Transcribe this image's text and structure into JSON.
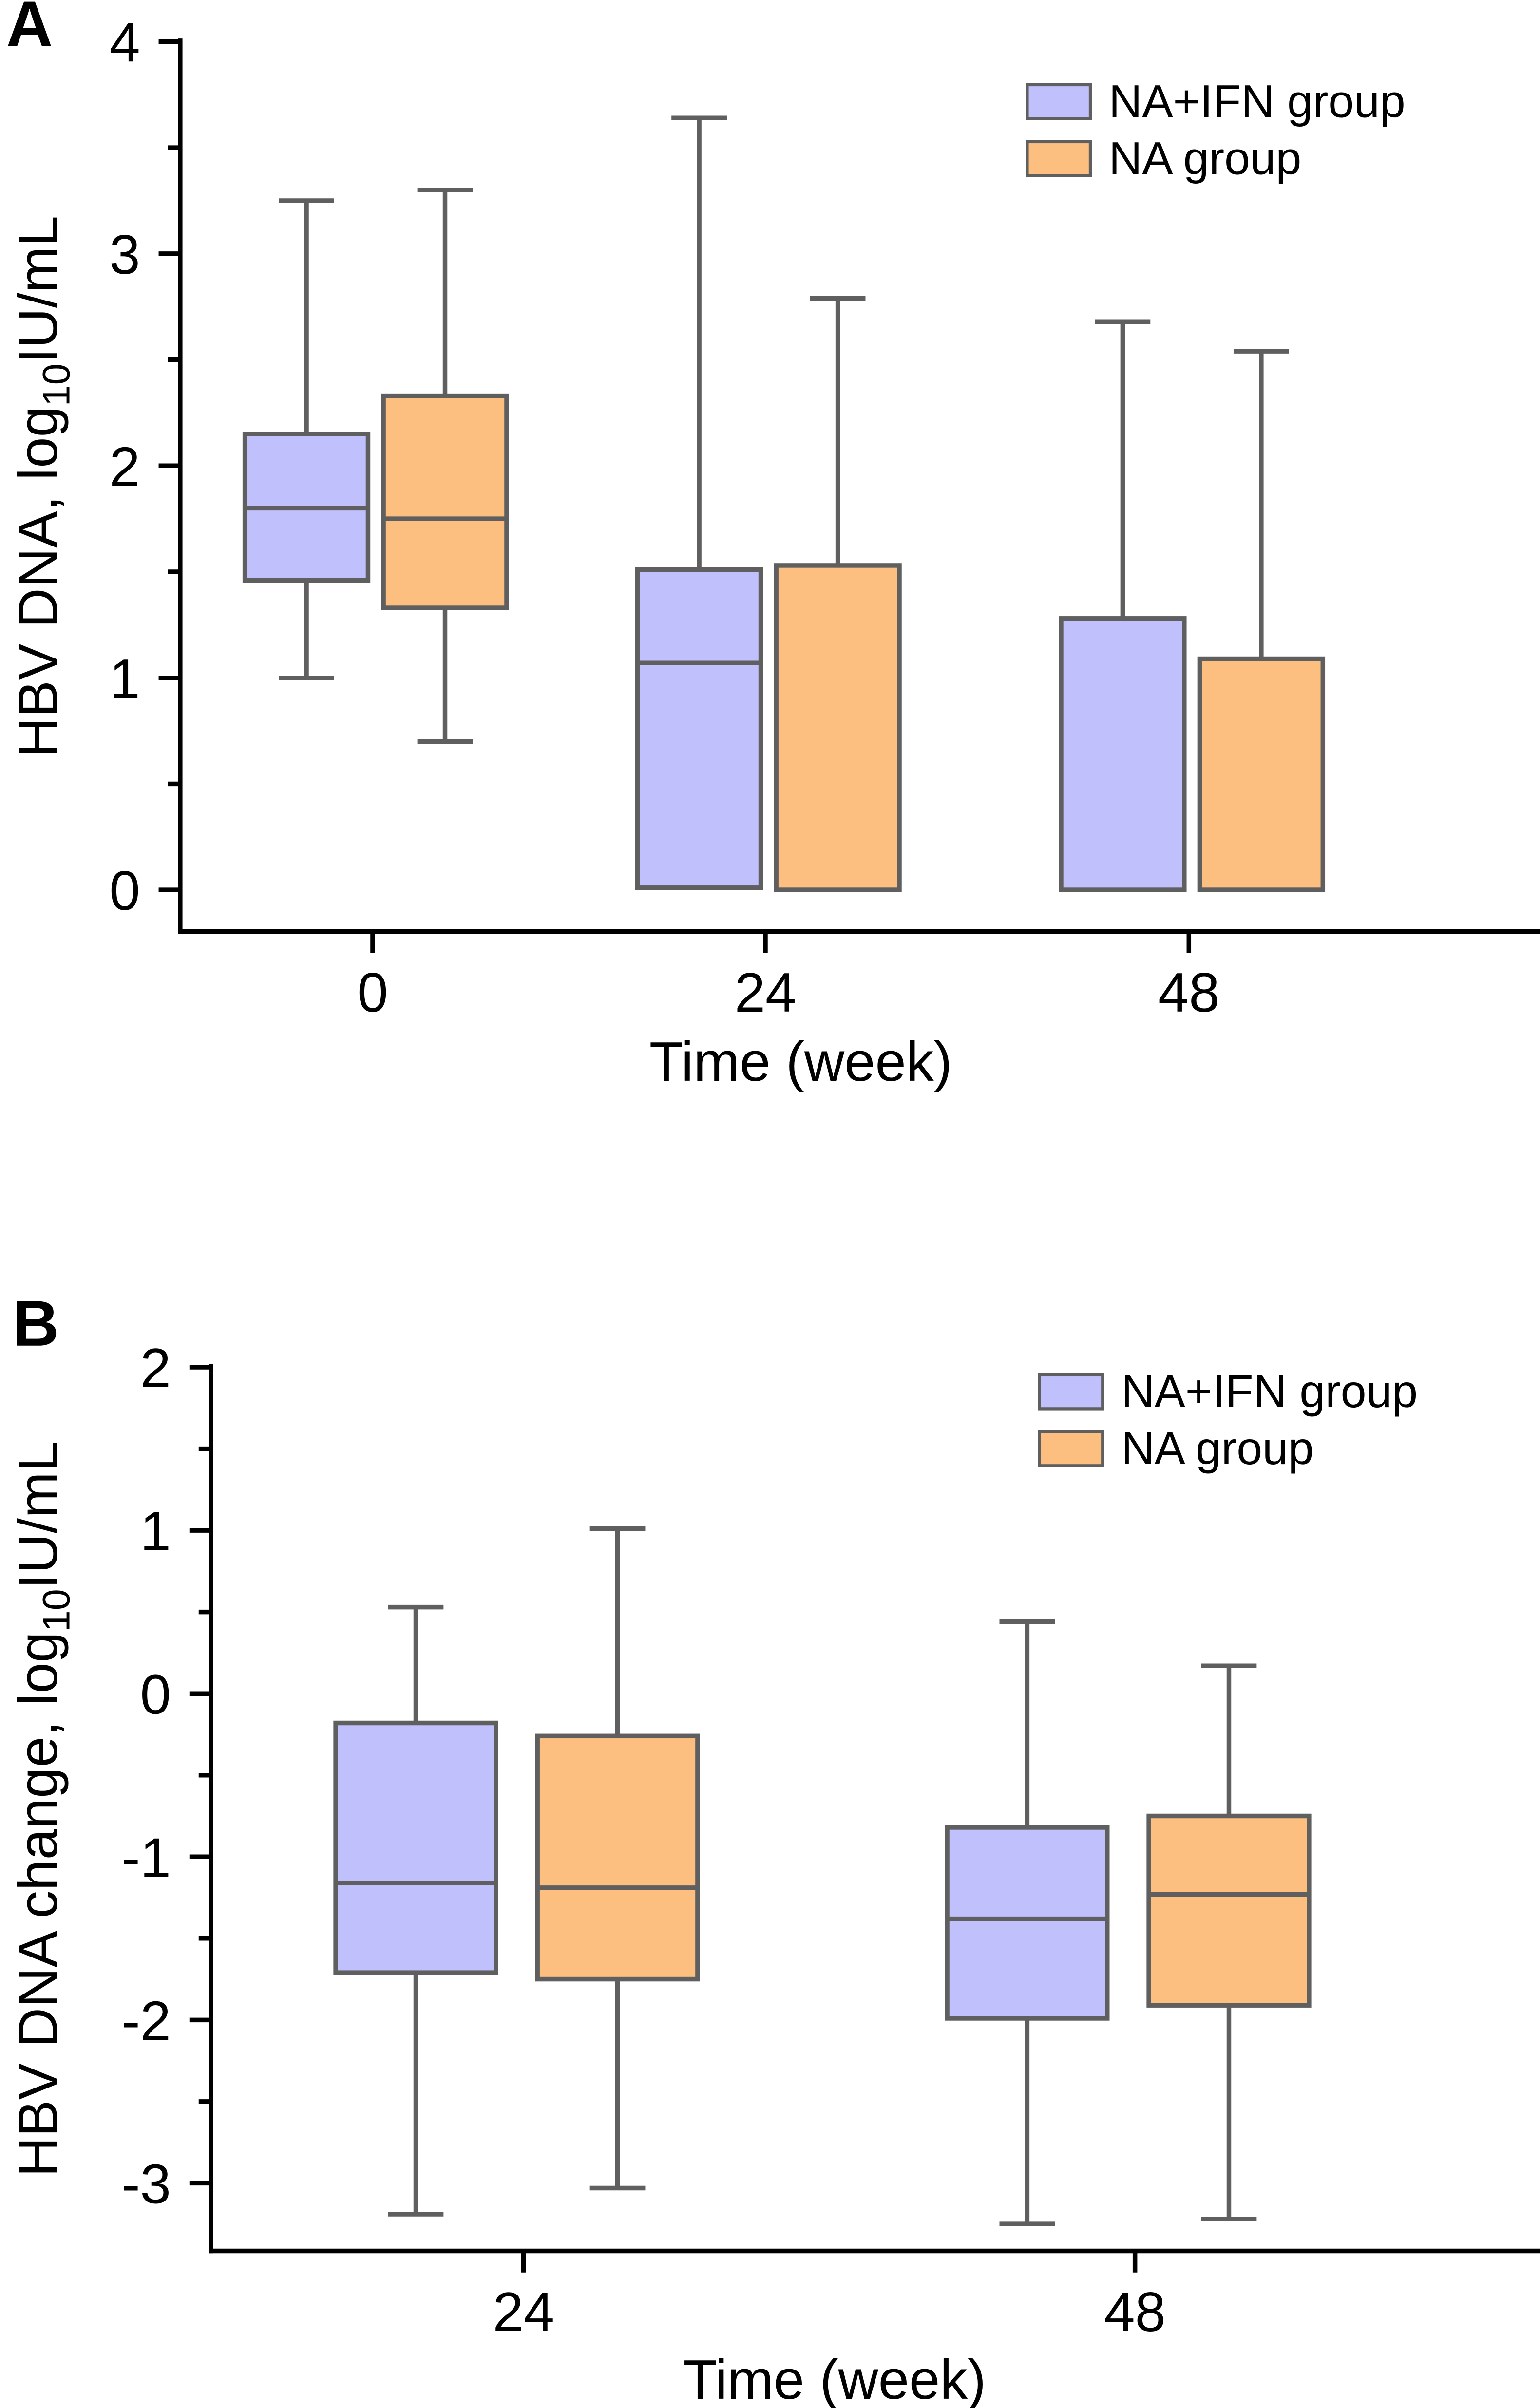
{
  "colors": {
    "naifn": "#c0c0fc",
    "na": "#fdbf80",
    "stroke": "#5f5f5f",
    "axis": "#000000"
  },
  "chart_data": [
    {
      "panel": "A",
      "type": "box",
      "xlabel": "Time (week)",
      "ylabel": {
        "prefix": "HBV DNA, log",
        "sub": "10",
        "suffix": "IU/mL"
      },
      "ylim": [
        -0.2,
        4
      ],
      "yticks": [
        "0",
        "1",
        "2",
        "3",
        "4"
      ],
      "yticks_values": [
        0,
        1,
        2,
        3,
        4
      ],
      "yminor": [
        0.5,
        1.5,
        2.5,
        3.5
      ],
      "categories": [
        "0",
        "24",
        "48"
      ],
      "legend": {
        "placement": "top-right",
        "entries": [
          "NA+IFN group",
          "NA group"
        ]
      },
      "series": [
        {
          "name": "NA+IFN group",
          "color_key": "naifn",
          "boxes": [
            {
              "min": 1.0,
              "q1": 1.46,
              "median": 1.8,
              "q3": 2.15,
              "max": 3.25
            },
            {
              "min": 0.01,
              "q1": 0.01,
              "median": 1.07,
              "q3": 1.51,
              "max": 3.64
            },
            {
              "min": 0.0,
              "q1": 0.0,
              "median": 0.0,
              "q3": 1.28,
              "max": 2.68
            }
          ]
        },
        {
          "name": "NA group",
          "color_key": "na",
          "boxes": [
            {
              "min": 0.7,
              "q1": 1.33,
              "median": 1.75,
              "q3": 2.33,
              "max": 3.3
            },
            {
              "min": 0.0,
              "q1": 0.0,
              "median": 0.0,
              "q3": 1.53,
              "max": 2.79
            },
            {
              "min": 0.0,
              "q1": 0.0,
              "median": 0.0,
              "q3": 1.09,
              "max": 2.54
            }
          ]
        }
      ]
    },
    {
      "panel": "B",
      "type": "box",
      "xlabel": "Time (week)",
      "ylabel": {
        "prefix": "HBV DNA change, log",
        "sub": "10",
        "suffix": "IU/mL"
      },
      "ylim": [
        -3.42,
        2
      ],
      "yticks": [
        "-3",
        "-2",
        "-1",
        "0",
        "1",
        "2"
      ],
      "yticks_values": [
        -3,
        -2,
        -1,
        0,
        1,
        2
      ],
      "yminor": [
        -2.5,
        -1.5,
        -0.5,
        0.5,
        1.5
      ],
      "categories": [
        "24",
        "48"
      ],
      "legend": {
        "placement": "top-right",
        "entries": [
          "NA+IFN group",
          "NA group"
        ]
      },
      "series": [
        {
          "name": "NA+IFN group",
          "color_key": "naifn",
          "boxes": [
            {
              "min": -3.19,
              "q1": -1.71,
              "median": -1.16,
              "q3": -0.18,
              "max": 0.53
            },
            {
              "min": -3.25,
              "q1": -1.99,
              "median": -1.38,
              "q3": -0.82,
              "max": 0.44
            }
          ]
        },
        {
          "name": "NA group",
          "color_key": "na",
          "boxes": [
            {
              "min": -3.03,
              "q1": -1.75,
              "median": -1.19,
              "q3": -0.26,
              "max": 1.01
            },
            {
              "min": -3.22,
              "q1": -1.91,
              "median": -1.23,
              "q3": -0.75,
              "max": 0.17
            }
          ]
        }
      ]
    }
  ]
}
